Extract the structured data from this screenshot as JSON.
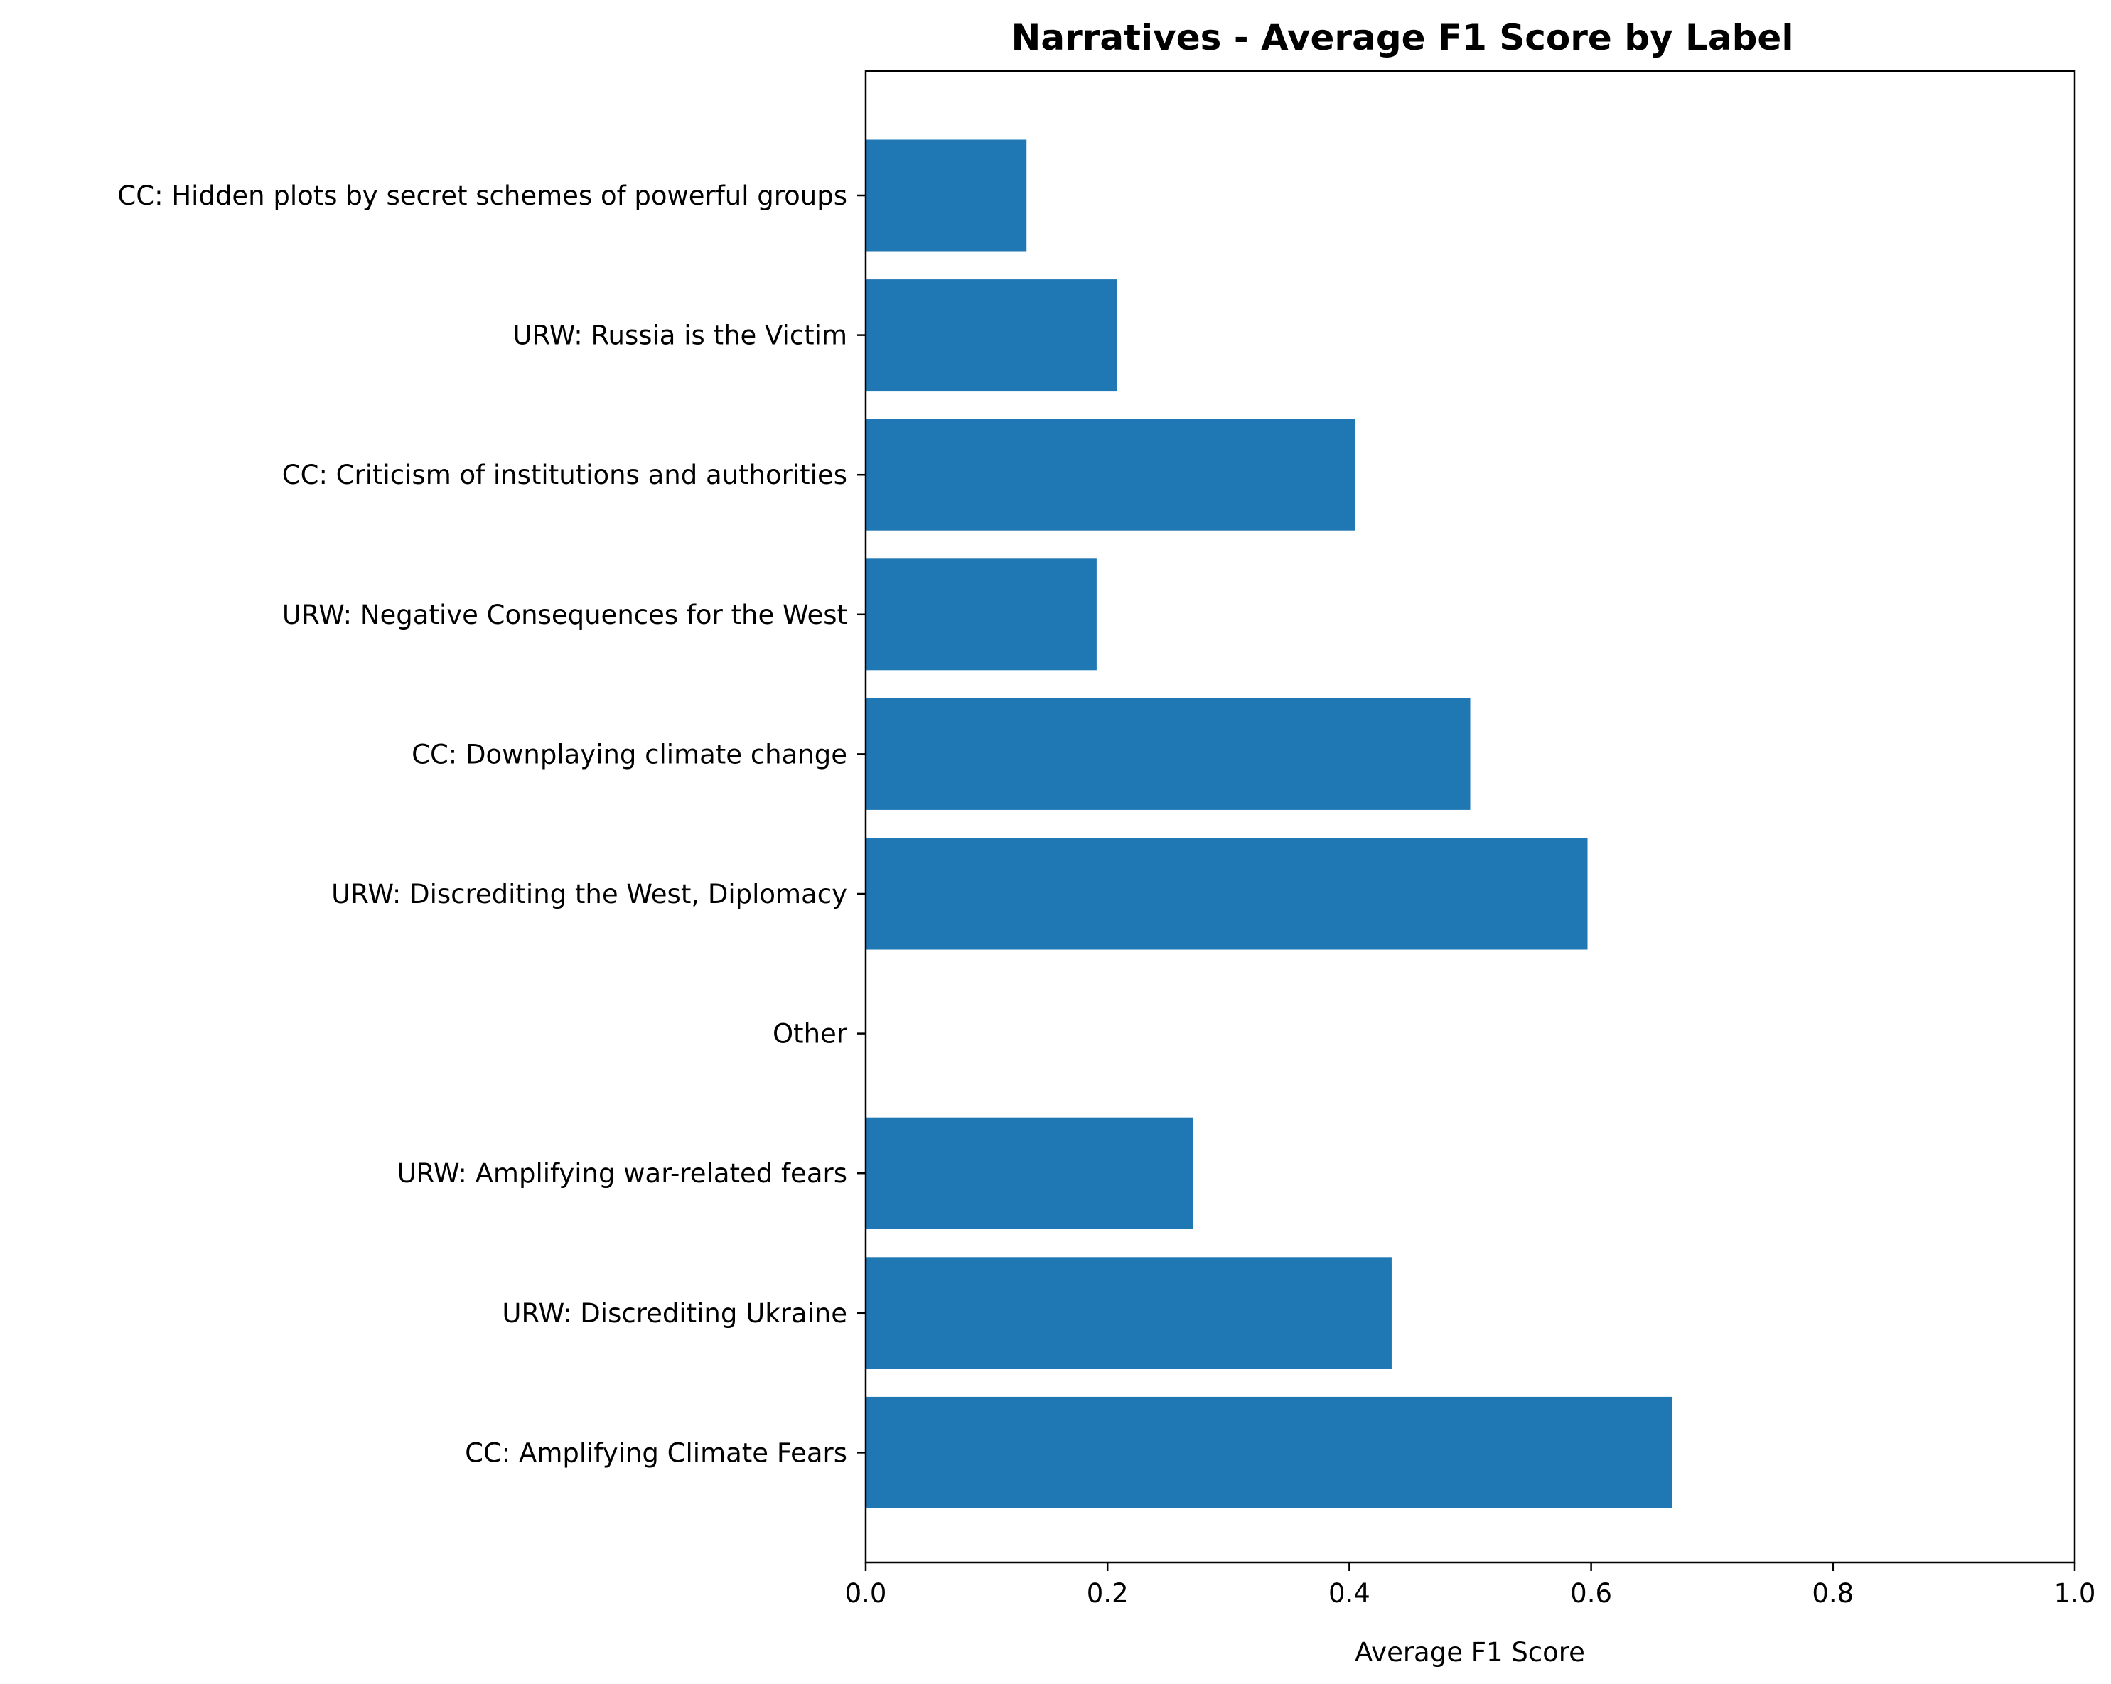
{
  "chart_data": {
    "type": "bar",
    "orientation": "horizontal",
    "title": "Narratives - Average F1 Score by Label",
    "xlabel": "Average F1 Score",
    "ylabel": "",
    "xlim": [
      0,
      1.0
    ],
    "x_ticks": [
      "0.0",
      "0.2",
      "0.4",
      "0.6",
      "0.8",
      "1.0"
    ],
    "categories": [
      "CC: Hidden plots by secret schemes of powerful groups",
      "URW: Russia is the Victim",
      "CC: Criticism of institutions and authorities",
      "URW: Negative Consequences for the West",
      "CC: Downplaying climate change",
      "URW: Discrediting the West, Diplomacy",
      "Other",
      "URW: Amplifying war-related fears",
      "URW: Discrediting Ukraine",
      "CC: Amplifying Climate Fears"
    ],
    "values": [
      0.133,
      0.208,
      0.405,
      0.191,
      0.5,
      0.597,
      0.0,
      0.271,
      0.435,
      0.667
    ],
    "bar_color": "#1f77b4",
    "grid": false,
    "legend": "none"
  }
}
